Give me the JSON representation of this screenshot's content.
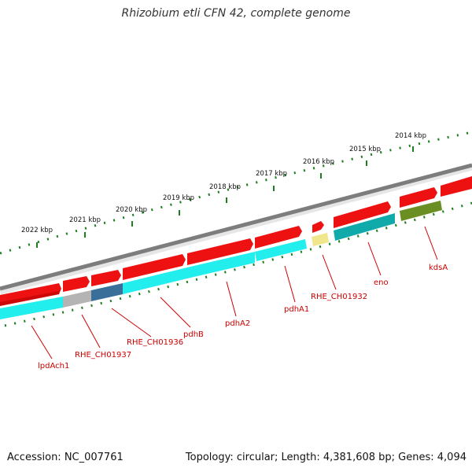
{
  "title": "Rhizobium etli CFN 42, complete genome",
  "footer": {
    "accession": "Accession: NC_007761",
    "summary": "Topology: circular; Length: 4,381,608 bp; Genes: 4,094"
  },
  "colors": {
    "backbone": "#7d7d7d",
    "tick": "#1e7d1e",
    "label": "#cc0000",
    "cds": "#ee1111",
    "gene_cyan": "#22eeee",
    "gene_teal": "#11aaaa",
    "gene_gray": "#b4b4b4",
    "gene_blue": "#3a6f9a",
    "gene_yellow": "#f0e68c",
    "gene_olive": "#6b8e23"
  },
  "kbp_labels": [
    "2022 kbp",
    "2021 kbp",
    "2020 kbp",
    "2019 kbp",
    "2018 kbp",
    "2017 kbp",
    "2016 kbp",
    "2015 kbp",
    "2014 kbp"
  ],
  "genes": [
    {
      "name": "lpdAch1",
      "color": "gene_cyan"
    },
    {
      "name": "RHE_CH01937",
      "color": "gene_gray"
    },
    {
      "name": "RHE_CH01936",
      "color": "gene_blue"
    },
    {
      "name": "pdhB",
      "color": "gene_cyan"
    },
    {
      "name": "pdhA2",
      "color": "gene_cyan"
    },
    {
      "name": "pdhA1",
      "color": "gene_cyan"
    },
    {
      "name": "RHE_CH01932",
      "color": "gene_yellow"
    },
    {
      "name": "eno",
      "color": "gene_teal"
    },
    {
      "name": "kdsA",
      "color": "gene_olive"
    }
  ]
}
